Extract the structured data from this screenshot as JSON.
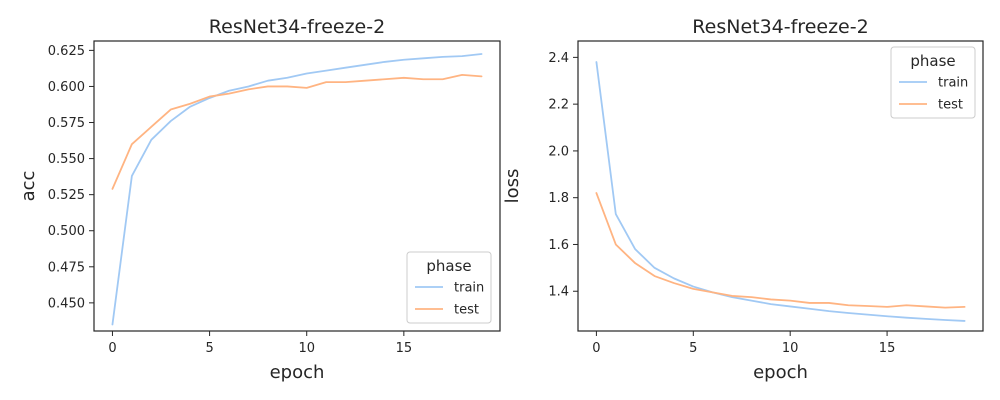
{
  "chart_data": [
    {
      "type": "line",
      "title": "ResNet34-freeze-2",
      "xlabel": "epoch",
      "ylabel": "acc",
      "xlim": [
        -0.95,
        19.95
      ],
      "ylim": [
        0.4305,
        0.6315
      ],
      "xticks": [
        0,
        5,
        10,
        15
      ],
      "yticks": [
        0.45,
        0.475,
        0.5,
        0.525,
        0.55,
        0.575,
        0.6,
        0.625
      ],
      "ytick_labels": [
        "0.450",
        "0.475",
        "0.500",
        "0.525",
        "0.550",
        "0.575",
        "0.600",
        "0.625"
      ],
      "grid": false,
      "legend": {
        "title": "phase",
        "placement": "lower-right"
      },
      "x": [
        0,
        1,
        2,
        3,
        4,
        5,
        6,
        7,
        8,
        9,
        10,
        11,
        12,
        13,
        14,
        15,
        16,
        17,
        18,
        19
      ],
      "series": [
        {
          "name": "train",
          "color": "#a1c9f4",
          "values": [
            0.435,
            0.538,
            0.563,
            0.576,
            0.586,
            0.592,
            0.597,
            0.6,
            0.604,
            0.606,
            0.609,
            0.611,
            0.613,
            0.615,
            0.617,
            0.6185,
            0.6195,
            0.6205,
            0.621,
            0.6225
          ]
        },
        {
          "name": "test",
          "color": "#ffb482",
          "values": [
            0.529,
            0.56,
            0.572,
            0.584,
            0.588,
            0.593,
            0.595,
            0.598,
            0.6,
            0.6,
            0.599,
            0.603,
            0.603,
            0.604,
            0.605,
            0.606,
            0.605,
            0.605,
            0.608,
            0.607
          ]
        }
      ]
    },
    {
      "type": "line",
      "title": "ResNet34-freeze-2",
      "xlabel": "epoch",
      "ylabel": "loss",
      "xlim": [
        -0.95,
        19.95
      ],
      "ylim": [
        1.23,
        2.47
      ],
      "xticks": [
        0,
        5,
        10,
        15
      ],
      "yticks": [
        1.4,
        1.6,
        1.8,
        2.0,
        2.2,
        2.4
      ],
      "ytick_labels": [
        "1.4",
        "1.6",
        "1.8",
        "2.0",
        "2.2",
        "2.4"
      ],
      "grid": false,
      "legend": {
        "title": "phase",
        "placement": "upper-right"
      },
      "x": [
        0,
        1,
        2,
        3,
        4,
        5,
        6,
        7,
        8,
        9,
        10,
        11,
        12,
        13,
        14,
        15,
        16,
        17,
        18,
        19
      ],
      "series": [
        {
          "name": "train",
          "color": "#a1c9f4",
          "values": [
            2.38,
            1.73,
            1.58,
            1.5,
            1.455,
            1.42,
            1.395,
            1.375,
            1.36,
            1.345,
            1.335,
            1.325,
            1.315,
            1.307,
            1.3,
            1.293,
            1.287,
            1.282,
            1.277,
            1.273
          ]
        },
        {
          "name": "test",
          "color": "#ffb482",
          "values": [
            1.82,
            1.6,
            1.52,
            1.465,
            1.435,
            1.41,
            1.395,
            1.38,
            1.375,
            1.365,
            1.36,
            1.35,
            1.35,
            1.34,
            1.337,
            1.333,
            1.34,
            1.335,
            1.33,
            1.333
          ]
        }
      ]
    }
  ]
}
